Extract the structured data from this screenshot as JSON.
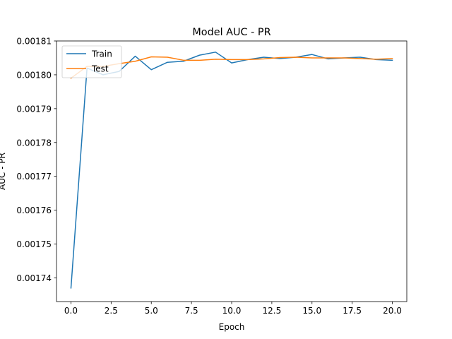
{
  "chart_data": {
    "type": "line",
    "title": "Model AUC - PR",
    "xlabel": "Epoch",
    "ylabel": "AUC - PR",
    "xlim": [
      -0.9,
      20.9
    ],
    "ylim": [
      0.001733,
      0.00181
    ],
    "x_ticks": [
      0,
      2.5,
      5,
      7.5,
      10,
      12.5,
      15,
      17.5,
      20
    ],
    "x_tick_labels": [
      "0.0",
      "2.5",
      "5.0",
      "7.5",
      "10.0",
      "12.5",
      "15.0",
      "17.5",
      "20.0"
    ],
    "y_ticks": [
      0.00174,
      0.00175,
      0.00176,
      0.00177,
      0.00178,
      0.00179,
      0.0018,
      0.00181
    ],
    "y_tick_labels": [
      "0.00174",
      "0.00175",
      "0.00176",
      "0.00177",
      "0.00178",
      "0.00179",
      "0.00180",
      "0.00181"
    ],
    "grid": false,
    "legend_position": "top-left",
    "x": [
      0,
      1,
      2,
      3,
      4,
      5,
      6,
      7,
      8,
      9,
      10,
      11,
      12,
      13,
      14,
      15,
      16,
      17,
      18,
      19,
      20
    ],
    "series": [
      {
        "name": "Train",
        "color": "#1f77b4",
        "values": [
          0.001737,
          0.001802,
          0.0018,
          0.001801,
          0.0018055,
          0.0018015,
          0.0018037,
          0.001804,
          0.0018058,
          0.0018067,
          0.0018035,
          0.0018045,
          0.0018052,
          0.0018048,
          0.0018052,
          0.001806,
          0.0018047,
          0.001805,
          0.0018052,
          0.0018045,
          0.0018043
        ]
      },
      {
        "name": "Test",
        "color": "#ff7f0e",
        "values": [
          0.001799,
          0.0018025,
          0.0018025,
          0.0018033,
          0.001804,
          0.0018053,
          0.0018052,
          0.0018043,
          0.0018043,
          0.0018046,
          0.0018045,
          0.0018045,
          0.0018047,
          0.0018051,
          0.0018052,
          0.001805,
          0.001805,
          0.001805,
          0.0018048,
          0.0018046,
          0.0018048
        ]
      }
    ]
  }
}
